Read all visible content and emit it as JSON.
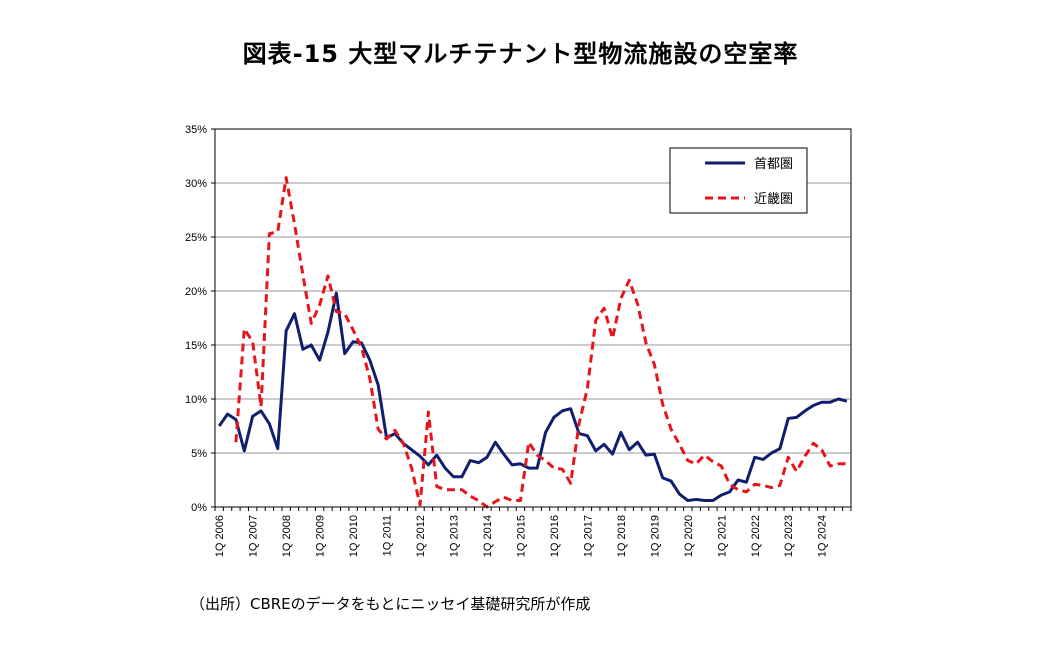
{
  "page_title": "図表-15 大型マルチテナント型物流施設の空室率",
  "source_note": "（出所）CBREのデータをもとにニッセイ基礎研究所が作成",
  "colors": {
    "shutoken": "#0f1f6e",
    "kinki": "#e8141b",
    "grid": "#9a9a9a"
  },
  "chart_data": {
    "type": "line",
    "title": "図表-15 大型マルチテナント型物流施設の空室率",
    "xlabel": "",
    "ylabel": "",
    "ylim": [
      0,
      35
    ],
    "yticks": [
      "0%",
      "5%",
      "10%",
      "15%",
      "20%",
      "25%",
      "30%",
      "35%"
    ],
    "grid": "horizontal",
    "legend_position": "top-right",
    "categories": [
      "1Q 2006",
      "2Q 2006",
      "3Q 2006",
      "4Q 2006",
      "1Q 2007",
      "2Q 2007",
      "3Q 2007",
      "4Q 2007",
      "1Q 2008",
      "2Q 2008",
      "3Q 2008",
      "4Q 2008",
      "1Q 2009",
      "2Q 2009",
      "3Q 2009",
      "4Q 2009",
      "1Q 2010",
      "2Q 2010",
      "3Q 2010",
      "4Q 2010",
      "1Q 2011",
      "2Q 2011",
      "3Q 2011",
      "4Q 2011",
      "1Q 2012",
      "2Q 2012",
      "3Q 2012",
      "4Q 2012",
      "1Q 2013",
      "2Q 2013",
      "3Q 2013",
      "4Q 2013",
      "1Q 2014",
      "2Q 2014",
      "3Q 2014",
      "4Q 2014",
      "1Q 2015",
      "2Q 2015",
      "3Q 2015",
      "4Q 2015",
      "1Q 2016",
      "2Q 2016",
      "3Q 2016",
      "4Q 2016",
      "1Q 2017",
      "2Q 2017",
      "3Q 2017",
      "4Q 2017",
      "1Q 2018",
      "2Q 2018",
      "3Q 2018",
      "4Q 2018",
      "1Q 2019",
      "2Q 2019",
      "3Q 2019",
      "4Q 2019",
      "1Q 2020",
      "2Q 2020",
      "3Q 2020",
      "4Q 2020",
      "1Q 2021",
      "2Q 2021",
      "3Q 2021",
      "4Q 2021",
      "1Q 2022",
      "2Q 2022",
      "3Q 2022",
      "4Q 2022",
      "1Q 2023",
      "2Q 2023",
      "3Q 2023",
      "4Q 2023",
      "1Q 2024",
      "2Q 2024",
      "3Q 2024",
      "4Q 2024"
    ],
    "xtick_labels": [
      "1Q 2006",
      "1Q 2007",
      "1Q 2008",
      "1Q 2009",
      "1Q 2010",
      "1Q 2011",
      "1Q 2012",
      "1Q 2013",
      "1Q 2014",
      "1Q 2015",
      "1Q 2016",
      "1Q 2017",
      "1Q 2018",
      "1Q 2019",
      "1Q 2020",
      "1Q 2021",
      "1Q 2022",
      "1Q 2023",
      "1Q 2024"
    ],
    "series": [
      {
        "name": "首都圏",
        "style": "solid",
        "values": [
          7.5,
          8.6,
          8.1,
          5.2,
          8.4,
          8.9,
          7.7,
          5.4,
          16.3,
          17.9,
          14.6,
          15.0,
          13.6,
          16.2,
          19.8,
          14.2,
          15.3,
          15.2,
          13.6,
          11.3,
          6.4,
          6.8,
          5.9,
          5.3,
          4.7,
          3.9,
          4.8,
          3.6,
          2.8,
          2.8,
          4.3,
          4.1,
          4.6,
          6.0,
          4.9,
          3.9,
          4.0,
          3.6,
          3.6,
          6.9,
          8.3,
          8.9,
          9.1,
          6.8,
          6.6,
          5.2,
          5.8,
          4.9,
          6.9,
          5.3,
          6.0,
          4.8,
          4.9,
          2.7,
          2.4,
          1.2,
          0.6,
          0.7,
          0.6,
          0.6,
          1.1,
          1.4,
          2.5,
          2.3,
          4.6,
          4.4,
          5.0,
          5.4,
          8.2,
          8.3,
          8.9,
          9.4,
          9.7,
          9.7,
          10.0,
          9.8
        ]
      },
      {
        "name": "近畿圏",
        "style": "dashed",
        "values": [
          null,
          null,
          6.0,
          16.5,
          15.3,
          9.3,
          25.3,
          25.5,
          30.5,
          26.2,
          21.5,
          17.0,
          18.7,
          21.4,
          18.1,
          17.9,
          16.4,
          14.8,
          11.9,
          7.2,
          6.3,
          7.1,
          5.9,
          3.6,
          0.2,
          8.8,
          1.9,
          1.6,
          1.6,
          1.6,
          1.0,
          0.6,
          0.0,
          0.5,
          0.9,
          0.6,
          0.6,
          6.0,
          4.8,
          4.3,
          3.6,
          3.5,
          2.2,
          7.7,
          11.0,
          17.3,
          18.4,
          15.6,
          19.3,
          21.0,
          18.8,
          15.2,
          13.2,
          9.5,
          7.2,
          5.8,
          4.3,
          4.0,
          4.8,
          4.2,
          3.8,
          2.1,
          1.6,
          1.4,
          2.1,
          2.0,
          1.8,
          2.0,
          4.6,
          3.3,
          4.7,
          5.9,
          5.3,
          3.8,
          4.0,
          4.0
        ]
      }
    ]
  }
}
